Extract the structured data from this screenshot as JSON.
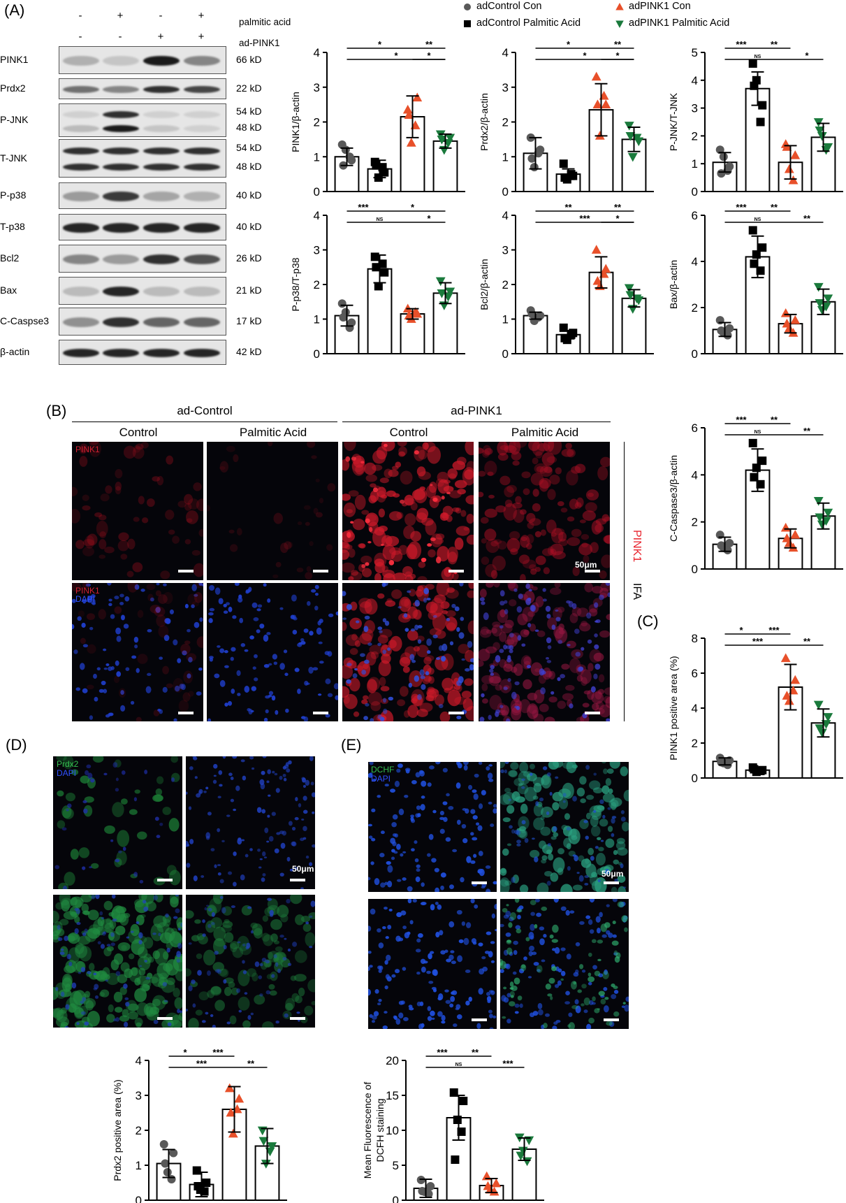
{
  "panels": {
    "A": "(A)",
    "B": "(B)",
    "C": "(C)",
    "D": "(D)",
    "E": "(E)"
  },
  "western_blot": {
    "treatment_rows": [
      {
        "label": "palmitic acid",
        "signs": [
          "-",
          "+",
          "-",
          "+"
        ]
      },
      {
        "label": "ad-PINK1",
        "signs": [
          "-",
          "-",
          "+",
          "+"
        ]
      }
    ],
    "proteins": [
      {
        "name": "PINK1",
        "kd": [
          "66 kD"
        ],
        "intensity": [
          0.25,
          0.15,
          0.95,
          0.45
        ]
      },
      {
        "name": "Prdx2",
        "kd": [
          "22 kD"
        ],
        "intensity": [
          0.55,
          0.45,
          0.85,
          0.75
        ]
      },
      {
        "name": "P-JNK",
        "kd": [
          "54 kD",
          "48 kD"
        ],
        "intensity": [
          0.2,
          0.95,
          0.15,
          0.1
        ]
      },
      {
        "name": "T-JNK",
        "kd": [
          "54 kD",
          "48 kD"
        ],
        "intensity": [
          0.85,
          0.85,
          0.85,
          0.85
        ]
      },
      {
        "name": "P-p38",
        "kd": [
          "40 kD"
        ],
        "intensity": [
          0.35,
          0.8,
          0.3,
          0.25
        ]
      },
      {
        "name": "T-p38",
        "kd": [
          "40 kD"
        ],
        "intensity": [
          0.9,
          0.9,
          0.9,
          0.9
        ]
      },
      {
        "name": "Bcl2",
        "kd": [
          "26 kD"
        ],
        "intensity": [
          0.45,
          0.35,
          0.85,
          0.7
        ]
      },
      {
        "name": "Bax",
        "kd": [
          "21 kD"
        ],
        "intensity": [
          0.2,
          0.9,
          0.2,
          0.2
        ]
      },
      {
        "name": "C-Caspse3",
        "kd": [
          "17 kD"
        ],
        "intensity": [
          0.4,
          0.85,
          0.6,
          0.6
        ]
      },
      {
        "name": "β-actin",
        "kd": [
          "42 kD"
        ],
        "intensity": [
          0.9,
          0.9,
          0.9,
          0.9
        ]
      }
    ]
  },
  "legend": [
    {
      "label": "adControl Con",
      "marker": "circle",
      "color": "#595959"
    },
    {
      "label": "adControl Palmitic Acid",
      "marker": "square",
      "color": "#000000"
    },
    {
      "label": "adPINK1 Con",
      "marker": "triangle-up",
      "color": "#e8502a"
    },
    {
      "label": "adPINK1 Palmitic Acid",
      "marker": "triangle-down",
      "color": "#1a7a3c"
    }
  ],
  "panel_B": {
    "groups": [
      "ad-Control",
      "ad-PINK1"
    ],
    "columns": [
      "Control",
      "Palmitic Acid",
      "Control",
      "Palmitic Acid"
    ],
    "side_label_red": "PINK1",
    "side_label": "IFA",
    "scale": "50μm",
    "overlay_top": "PINK1",
    "overlay_bottom_1": "PINK1",
    "overlay_bottom_2": "DAPI"
  },
  "panel_D": {
    "stain_1": "Prdx2",
    "stain_2": "DAPI",
    "scale": "50μm"
  },
  "panel_E": {
    "stain_1": "DCHF",
    "stain_2": "DAPI",
    "scale": "50μm"
  },
  "chart_data": [
    {
      "id": "pink1",
      "type": "bar",
      "ylabel": "PINK1/β-actin",
      "ylim": [
        0,
        4
      ],
      "yticks": [
        0,
        1,
        2,
        3,
        4
      ],
      "categories": [
        "adControl Con",
        "adControl Palmitic Acid",
        "adPINK1 Con",
        "adPINK1 Palmitic Acid"
      ],
      "values": [
        1.0,
        0.65,
        2.15,
        1.45
      ],
      "sd": [
        0.25,
        0.25,
        0.6,
        0.2
      ],
      "points": [
        [
          1.35,
          0.9,
          1.2,
          1.0,
          0.75
        ],
        [
          0.85,
          0.55,
          0.4,
          0.7,
          0.75
        ],
        [
          2.35,
          2.7,
          1.4,
          1.9,
          2.2
        ],
        [
          1.65,
          1.55,
          1.2,
          1.4,
          1.5
        ]
      ],
      "sig": [
        {
          "a": 0,
          "b": 2,
          "t": "*",
          "row": 0
        },
        {
          "a": 2,
          "b": 3,
          "t": "**",
          "row": 0
        },
        {
          "a": 0,
          "b": 3,
          "t": "*",
          "row": 1
        },
        {
          "a": 2,
          "b": 3,
          "t": "*",
          "row": 1
        }
      ]
    },
    {
      "id": "prdx2",
      "type": "bar",
      "ylabel": "Prdx2/β-actin",
      "ylim": [
        0,
        4
      ],
      "yticks": [
        0,
        1,
        2,
        3,
        4
      ],
      "categories": [
        "adControl Con",
        "adControl Palmitic Acid",
        "adPINK1 Con",
        "adPINK1 Palmitic Acid"
      ],
      "values": [
        1.1,
        0.5,
        2.35,
        1.5
      ],
      "sd": [
        0.45,
        0.15,
        0.75,
        0.35
      ],
      "points": [
        [
          1.55,
          1.2,
          0.7,
          1.1,
          0.95
        ],
        [
          0.8,
          0.45,
          0.35,
          0.5,
          0.4
        ],
        [
          3.3,
          2.5,
          1.6,
          2.75,
          2.5
        ],
        [
          1.9,
          1.45,
          1.0,
          1.55,
          1.6
        ]
      ],
      "sig": [
        {
          "a": 0,
          "b": 2,
          "t": "*",
          "row": 0
        },
        {
          "a": 2,
          "b": 3,
          "t": "**",
          "row": 0
        },
        {
          "a": 0,
          "b": 3,
          "t": "*",
          "row": 1
        },
        {
          "a": 2,
          "b": 3,
          "t": "*",
          "row": 1
        }
      ]
    },
    {
      "id": "pjnk",
      "type": "bar",
      "ylabel": "P-JNK/T-JNK",
      "ylim": [
        0,
        5
      ],
      "yticks": [
        0,
        1,
        2,
        3,
        4,
        5
      ],
      "categories": [
        "adControl Con",
        "adControl Palmitic Acid",
        "adPINK1 Con",
        "adPINK1 Palmitic Acid"
      ],
      "values": [
        1.05,
        3.7,
        1.05,
        1.95
      ],
      "sd": [
        0.35,
        0.6,
        0.6,
        0.5
      ],
      "points": [
        [
          1.5,
          0.9,
          1.25,
          0.75,
          0.65
        ],
        [
          4.6,
          3.1,
          4.0,
          2.5,
          3.8
        ],
        [
          1.7,
          1.3,
          0.8,
          0.4,
          1.6
        ],
        [
          2.5,
          1.6,
          2.0,
          1.5,
          2.2
        ]
      ],
      "sig": [
        {
          "a": 0,
          "b": 1,
          "t": "***",
          "row": 0
        },
        {
          "a": 1,
          "b": 2,
          "t": "**",
          "row": 0
        },
        {
          "a": 0,
          "b": 2,
          "t": "NS",
          "row": 1
        },
        {
          "a": 2,
          "b": 3,
          "t": "*",
          "row": 1
        }
      ]
    },
    {
      "id": "pp38",
      "type": "bar",
      "ylabel": "P-p38/T-p38",
      "ylim": [
        0,
        4
      ],
      "yticks": [
        0,
        1,
        2,
        3,
        4
      ],
      "categories": [
        "adControl Con",
        "adControl Palmitic Acid",
        "adPINK1 Con",
        "adPINK1 Palmitic Acid"
      ],
      "values": [
        1.1,
        2.45,
        1.15,
        1.75
      ],
      "sd": [
        0.3,
        0.4,
        0.15,
        0.3
      ],
      "points": [
        [
          1.45,
          0.9,
          1.2,
          0.75,
          1.05
        ],
        [
          2.8,
          2.35,
          1.95,
          2.6,
          2.5
        ],
        [
          1.3,
          1.15,
          1.0,
          1.2,
          1.1
        ],
        [
          2.1,
          1.8,
          1.4,
          1.65,
          1.75
        ]
      ],
      "sig": [
        {
          "a": 0,
          "b": 1,
          "t": "***",
          "row": 0
        },
        {
          "a": 1,
          "b": 3,
          "t": "*",
          "row": 0
        },
        {
          "a": 0,
          "b": 2,
          "t": "NS",
          "row": 1
        },
        {
          "a": 2,
          "b": 3,
          "t": "*",
          "row": 1
        }
      ]
    },
    {
      "id": "bcl2",
      "type": "bar",
      "ylabel": "Bcl2/β-actin",
      "ylim": [
        0,
        4
      ],
      "yticks": [
        0,
        1,
        2,
        3,
        4
      ],
      "categories": [
        "adControl Con",
        "adControl Palmitic Acid",
        "adPINK1 Con",
        "adPINK1 Palmitic Acid"
      ],
      "values": [
        1.1,
        0.55,
        2.35,
        1.6
      ],
      "sd": [
        0.1,
        0.12,
        0.45,
        0.25
      ],
      "points": [
        [
          1.25,
          1.1,
          0.95,
          1.05,
          1.15
        ],
        [
          0.75,
          0.6,
          0.4,
          0.55,
          0.45
        ],
        [
          3.0,
          2.45,
          1.95,
          2.3,
          2.1
        ],
        [
          1.9,
          1.55,
          1.3,
          1.6,
          1.7
        ]
      ],
      "sig": [
        {
          "a": 0,
          "b": 2,
          "t": "**",
          "row": 0
        },
        {
          "a": 2,
          "b": 3,
          "t": "**",
          "row": 0
        },
        {
          "a": 0,
          "b": 3,
          "t": "***",
          "row": 1
        },
        {
          "a": 2,
          "b": 3,
          "t": "*",
          "row": 1
        }
      ]
    },
    {
      "id": "bax",
      "type": "bar",
      "ylabel": "Bax/β-actin",
      "ylim": [
        0,
        6
      ],
      "yticks": [
        0,
        2,
        4,
        6
      ],
      "categories": [
        "adControl Con",
        "adControl Palmitic Acid",
        "adPINK1 Con",
        "adPINK1 Palmitic Acid"
      ],
      "values": [
        1.05,
        4.2,
        1.3,
        2.25
      ],
      "sd": [
        0.3,
        0.9,
        0.4,
        0.55
      ],
      "points": [
        [
          1.45,
          1.1,
          0.9,
          0.8,
          1.0
        ],
        [
          5.35,
          4.6,
          4.3,
          3.6,
          3.9
        ],
        [
          1.75,
          1.45,
          1.1,
          0.9,
          1.3
        ],
        [
          2.9,
          2.4,
          1.9,
          2.05,
          2.2
        ]
      ],
      "sig": [
        {
          "a": 0,
          "b": 1,
          "t": "***",
          "row": 0
        },
        {
          "a": 1,
          "b": 2,
          "t": "**",
          "row": 0
        },
        {
          "a": 0,
          "b": 2,
          "t": "NS",
          "row": 1
        },
        {
          "a": 2,
          "b": 3,
          "t": "**",
          "row": 1
        }
      ]
    },
    {
      "id": "ccasp3",
      "type": "bar",
      "ylabel": "C-Caspase3/β-actin",
      "ylim": [
        0,
        6
      ],
      "yticks": [
        0,
        2,
        4,
        6
      ],
      "categories": [
        "adControl Con",
        "adControl Palmitic Acid",
        "adPINK1 Con",
        "adPINK1 Palmitic Acid"
      ],
      "values": [
        1.05,
        4.2,
        1.3,
        2.25
      ],
      "sd": [
        0.3,
        0.9,
        0.4,
        0.55
      ],
      "points": [
        [
          1.45,
          1.1,
          0.9,
          0.8,
          1.0
        ],
        [
          5.35,
          4.6,
          4.3,
          3.6,
          3.9
        ],
        [
          1.75,
          1.45,
          1.1,
          0.9,
          1.3
        ],
        [
          2.9,
          2.4,
          1.9,
          2.05,
          2.2
        ]
      ],
      "sig": [
        {
          "a": 0,
          "b": 1,
          "t": "***",
          "row": 0
        },
        {
          "a": 1,
          "b": 2,
          "t": "**",
          "row": 0
        },
        {
          "a": 0,
          "b": 2,
          "t": "NS",
          "row": 1
        },
        {
          "a": 2,
          "b": 3,
          "t": "**",
          "row": 1
        }
      ]
    },
    {
      "id": "pinkarea",
      "type": "bar",
      "ylabel": "PINK1 positive area (%)",
      "ylim": [
        0,
        8
      ],
      "yticks": [
        0,
        2,
        4,
        6,
        8
      ],
      "categories": [
        "adControl Con",
        "adControl Palmitic Acid",
        "adPINK1 Con",
        "adPINK1 Palmitic Acid"
      ],
      "values": [
        0.95,
        0.45,
        5.2,
        3.15
      ],
      "sd": [
        0.2,
        0.12,
        1.3,
        0.8
      ],
      "points": [
        [
          1.15,
          1.0,
          0.85,
          0.75,
          0.9
        ],
        [
          0.6,
          0.45,
          0.35,
          0.4,
          0.5
        ],
        [
          6.85,
          5.6,
          4.4,
          5.0,
          4.7
        ],
        [
          4.2,
          3.5,
          2.6,
          3.1,
          2.85
        ]
      ],
      "sig": [
        {
          "a": 0,
          "b": 1,
          "t": "*",
          "row": 0
        },
        {
          "a": 1,
          "b": 2,
          "t": "***",
          "row": 0
        },
        {
          "a": 0,
          "b": 2,
          "t": "***",
          "row": 1
        },
        {
          "a": 2,
          "b": 3,
          "t": "**",
          "row": 1
        }
      ]
    },
    {
      "id": "prdx2area",
      "type": "bar",
      "ylabel": "Prdx2 positive area (%)",
      "ylim": [
        0,
        4
      ],
      "yticks": [
        0,
        1,
        2,
        3,
        4
      ],
      "categories": [
        "adControl Con",
        "adControl Palmitic Acid",
        "adPINK1 Con",
        "adPINK1 Palmitic Acid"
      ],
      "values": [
        1.05,
        0.45,
        2.6,
        1.55
      ],
      "sd": [
        0.4,
        0.35,
        0.65,
        0.5
      ],
      "points": [
        [
          1.6,
          1.35,
          0.8,
          0.6,
          1.05
        ],
        [
          0.85,
          0.5,
          0.3,
          0.25,
          0.4
        ],
        [
          3.2,
          2.9,
          1.9,
          2.6,
          2.5
        ],
        [
          2.0,
          1.55,
          1.05,
          1.4,
          1.7
        ]
      ],
      "sig": [
        {
          "a": 0,
          "b": 1,
          "t": "*",
          "row": 0
        },
        {
          "a": 1,
          "b": 2,
          "t": "***",
          "row": 0
        },
        {
          "a": 0,
          "b": 2,
          "t": "***",
          "row": 1
        },
        {
          "a": 2,
          "b": 3,
          "t": "**",
          "row": 1
        }
      ]
    },
    {
      "id": "dcfh",
      "type": "bar",
      "ylabel": "Mean Fluorescence of DCFH staining",
      "ylim": [
        0,
        20
      ],
      "yticks": [
        0,
        5,
        10,
        15,
        20
      ],
      "categories": [
        "adControl Con",
        "adControl Palmitic Acid",
        "adPINK1 Con",
        "adPINK1 Palmitic Acid"
      ],
      "values": [
        1.7,
        11.8,
        2.1,
        7.3
      ],
      "sd": [
        1.3,
        3.2,
        1.0,
        1.6
      ],
      "points": [
        [
          2.9,
          2.0,
          1.2,
          0.9,
          1.3
        ],
        [
          15.4,
          14.2,
          11.5,
          9.8,
          5.8
        ],
        [
          3.4,
          2.4,
          1.5,
          1.2,
          2.0
        ],
        [
          9.0,
          8.6,
          7.1,
          5.6,
          6.4
        ]
      ],
      "sig": [
        {
          "a": 0,
          "b": 1,
          "t": "***",
          "row": 0
        },
        {
          "a": 1,
          "b": 2,
          "t": "**",
          "row": 0
        },
        {
          "a": 0,
          "b": 2,
          "t": "NS",
          "row": 1
        },
        {
          "a": 2,
          "b": 3,
          "t": "***",
          "row": 1
        }
      ]
    }
  ]
}
